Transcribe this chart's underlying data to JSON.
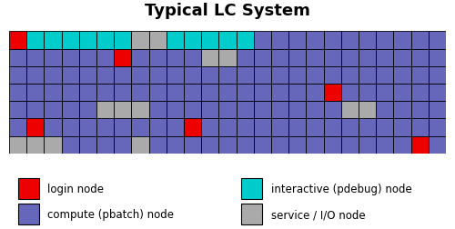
{
  "title": "Typical LC System",
  "cols": 25,
  "rows": 7,
  "colors": {
    "L": "#ee0000",
    "C": "#6666bb",
    "I": "#00cccc",
    "S": "#aaaaaa"
  },
  "grid": [
    [
      "L",
      "I",
      "I",
      "I",
      "I",
      "I",
      "I",
      "S",
      "S",
      "I",
      "I",
      "I",
      "I",
      "I",
      "C",
      "C",
      "C",
      "C",
      "C",
      "C",
      "C",
      "C",
      "C",
      "C",
      "C"
    ],
    [
      "C",
      "C",
      "C",
      "C",
      "C",
      "C",
      "L",
      "C",
      "C",
      "C",
      "C",
      "S",
      "S",
      "C",
      "C",
      "C",
      "C",
      "C",
      "C",
      "C",
      "C",
      "C",
      "C",
      "C",
      "C"
    ],
    [
      "C",
      "C",
      "C",
      "C",
      "C",
      "C",
      "C",
      "C",
      "C",
      "C",
      "C",
      "C",
      "C",
      "C",
      "C",
      "C",
      "C",
      "C",
      "C",
      "C",
      "C",
      "C",
      "C",
      "C",
      "C"
    ],
    [
      "C",
      "C",
      "C",
      "C",
      "C",
      "C",
      "C",
      "C",
      "C",
      "C",
      "C",
      "C",
      "C",
      "C",
      "C",
      "C",
      "C",
      "C",
      "L",
      "C",
      "C",
      "C",
      "C",
      "C",
      "C"
    ],
    [
      "C",
      "C",
      "C",
      "C",
      "C",
      "S",
      "S",
      "S",
      "C",
      "C",
      "C",
      "C",
      "C",
      "C",
      "C",
      "C",
      "C",
      "C",
      "C",
      "S",
      "S",
      "C",
      "C",
      "C",
      "C"
    ],
    [
      "C",
      "L",
      "C",
      "C",
      "C",
      "C",
      "C",
      "C",
      "C",
      "C",
      "L",
      "C",
      "C",
      "C",
      "C",
      "C",
      "C",
      "C",
      "C",
      "C",
      "C",
      "C",
      "C",
      "C",
      "C"
    ],
    [
      "S",
      "S",
      "S",
      "C",
      "C",
      "C",
      "C",
      "S",
      "C",
      "C",
      "C",
      "C",
      "C",
      "C",
      "C",
      "C",
      "C",
      "C",
      "C",
      "C",
      "C",
      "C",
      "C",
      "L",
      "C"
    ]
  ],
  "legend": [
    {
      "color": "#ee0000",
      "label": "login node"
    },
    {
      "color": "#6666bb",
      "label": "compute (pbatch) node"
    },
    {
      "color": "#00cccc",
      "label": "interactive (pdebug) node"
    },
    {
      "color": "#aaaaaa",
      "label": "service / I/O node"
    }
  ],
  "bg_color": "#ffffff",
  "grid_color": "#000000",
  "title_fontsize": 13,
  "title_fontweight": "bold"
}
